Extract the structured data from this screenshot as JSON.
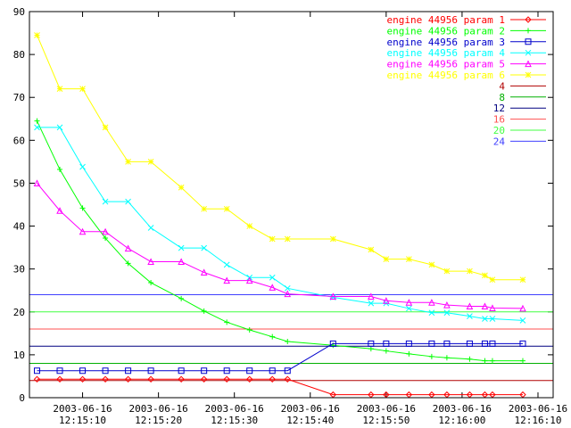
{
  "chart_data": {
    "type": "line",
    "x": [
      "2003-06-16 12:15:04",
      "2003-06-16 12:15:07",
      "2003-06-16 12:15:10",
      "2003-06-16 12:15:13",
      "2003-06-16 12:15:16",
      "2003-06-16 12:15:19",
      "2003-06-16 12:15:23",
      "2003-06-16 12:15:26",
      "2003-06-16 12:15:29",
      "2003-06-16 12:15:32",
      "2003-06-16 12:15:35",
      "2003-06-16 12:15:37",
      "2003-06-16 12:15:43",
      "2003-06-16 12:15:48",
      "2003-06-16 12:15:50",
      "2003-06-16 12:15:53",
      "2003-06-16 12:15:56",
      "2003-06-16 12:15:58",
      "2003-06-16 12:16:01",
      "2003-06-16 12:16:03",
      "2003-06-16 12:16:04",
      "2003-06-16 12:16:08"
    ],
    "xlim": [
      "2003-06-16 12:15:03",
      "2003-06-16 12:16:12"
    ],
    "xticks": [
      "2003-06-16 12:15:10",
      "2003-06-16 12:15:20",
      "2003-06-16 12:15:30",
      "2003-06-16 12:15:40",
      "2003-06-16 12:15:50",
      "2003-06-16 12:16:00",
      "2003-06-16 12:16:10"
    ],
    "ylim": [
      0,
      90
    ],
    "yticks": [
      0,
      10,
      20,
      30,
      40,
      50,
      60,
      70,
      80,
      90
    ],
    "grid": false,
    "legend": "top-right",
    "series": [
      {
        "name": "engine 44956 param 1",
        "color": "#ff0000",
        "marker": "diamond",
        "values": [
          4.3,
          4.3,
          4.3,
          4.3,
          4.3,
          4.3,
          4.3,
          4.3,
          4.3,
          4.3,
          4.3,
          4.3,
          0.7,
          0.7,
          0.7,
          0.7,
          0.7,
          0.7,
          0.7,
          0.7,
          0.7,
          0.7
        ]
      },
      {
        "name": "engine 44956 param 2",
        "color": "#00ff00",
        "marker": "plus",
        "values": [
          64.5,
          53.2,
          44.2,
          37.2,
          31.3,
          26.8,
          23.1,
          20.2,
          17.6,
          15.8,
          14.2,
          13.1,
          12.2,
          11.4,
          10.9,
          10.2,
          9.6,
          9.3,
          9.0,
          8.6,
          8.6,
          8.6
        ]
      },
      {
        "name": "engine 44956 param 3",
        "color": "#0000cc",
        "marker": "square",
        "values": [
          6.3,
          6.3,
          6.3,
          6.3,
          6.3,
          6.3,
          6.3,
          6.3,
          6.3,
          6.3,
          6.3,
          6.3,
          12.6,
          12.6,
          12.6,
          12.6,
          12.6,
          12.6,
          12.6,
          12.6,
          12.6,
          12.6
        ]
      },
      {
        "name": "engine 44956 param 4",
        "color": "#00ffff",
        "marker": "cross",
        "values": [
          63,
          63,
          53.8,
          45.7,
          45.7,
          39.6,
          34.9,
          34.9,
          31,
          28,
          28,
          25.5,
          23.4,
          22,
          22,
          20.8,
          19.8,
          19.8,
          19,
          18.4,
          18.4,
          18
        ]
      },
      {
        "name": "engine 44956 param 5",
        "color": "#ff00ff",
        "marker": "triangle",
        "values": [
          50,
          43.6,
          38.7,
          38.7,
          34.8,
          31.7,
          31.7,
          29.2,
          27.3,
          27.3,
          25.7,
          24.2,
          23.6,
          23.6,
          22.6,
          22.2,
          22.2,
          21.6,
          21.3,
          21.3,
          20.9,
          20.8
        ]
      },
      {
        "name": "engine 44956 param 6",
        "color": "#ffff00",
        "marker": "star",
        "values": [
          84.5,
          72,
          72,
          63,
          55,
          55,
          49,
          44,
          44,
          40,
          37,
          37,
          37,
          34.5,
          32.3,
          32.3,
          31,
          29.5,
          29.5,
          28.5,
          27.5,
          27.5
        ]
      }
    ],
    "constants": [
      {
        "name": "4",
        "value": 4,
        "color": "#b00000"
      },
      {
        "name": "8",
        "value": 8,
        "color": "#00b000"
      },
      {
        "name": "12",
        "value": 12,
        "color": "#000080"
      },
      {
        "name": "16",
        "value": 16,
        "color": "#ff5050"
      },
      {
        "name": "20",
        "value": 20,
        "color": "#40ff40"
      },
      {
        "name": "24",
        "value": 24,
        "color": "#4040ff"
      }
    ]
  }
}
